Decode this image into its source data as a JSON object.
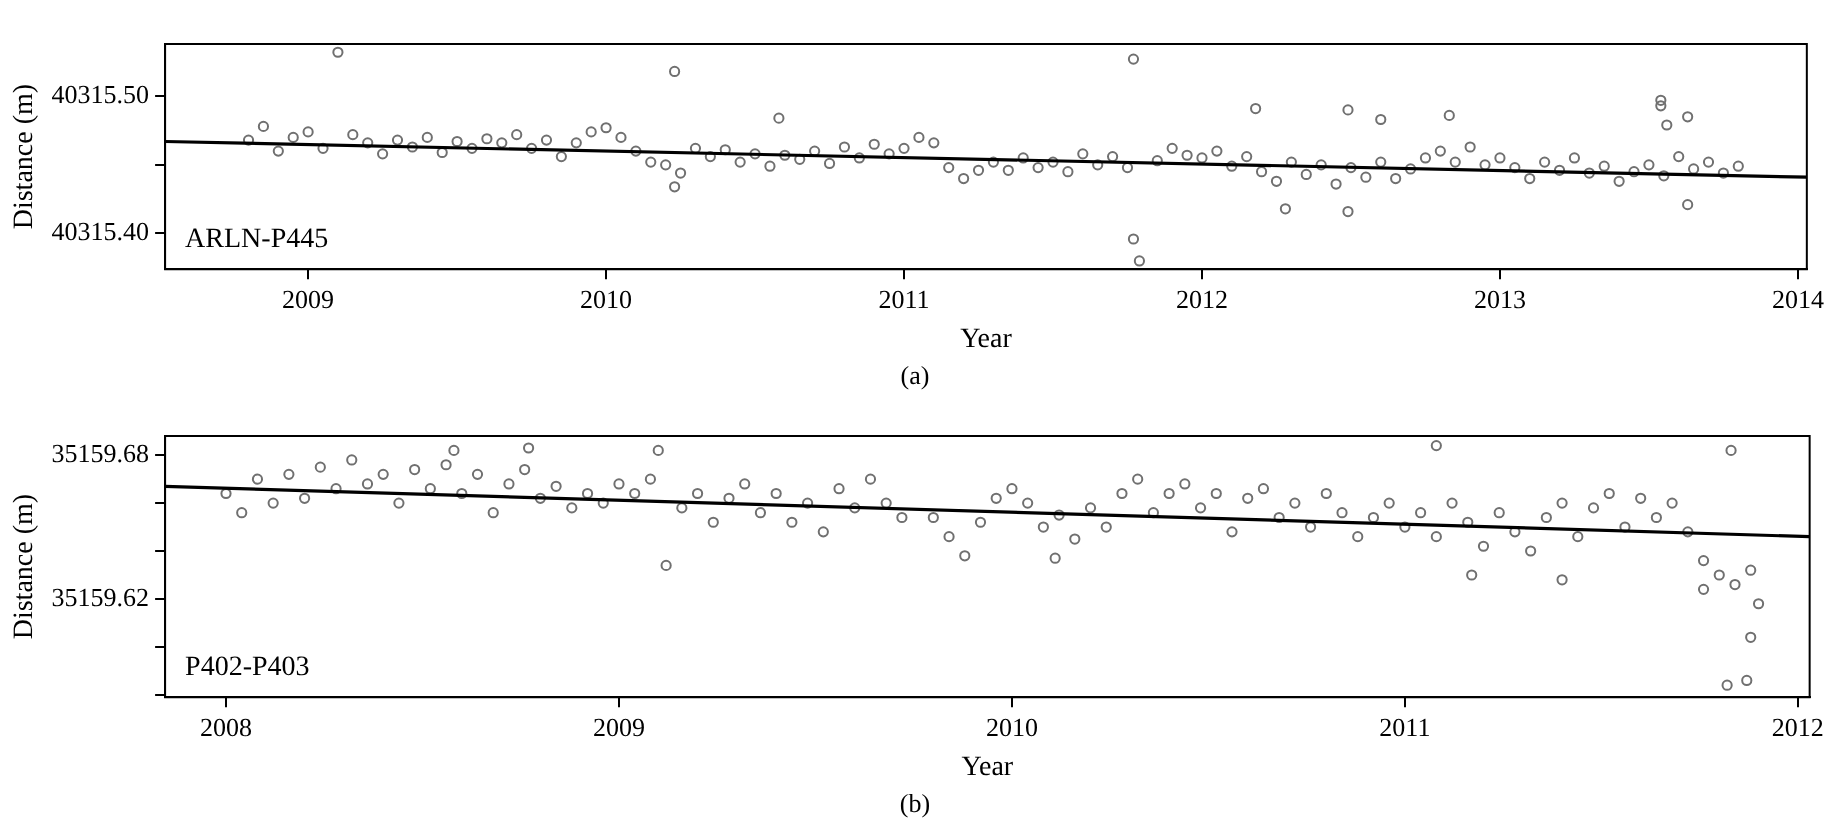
{
  "chart_data": [
    {
      "type": "scatter",
      "xlabel": "Year",
      "ylabel": "Distance (m)",
      "xlim": [
        2008.52,
        2014.03
      ],
      "xticks": [
        2009,
        2010,
        2011,
        2012,
        2013,
        2014
      ],
      "ylim": [
        40315.374,
        40315.538
      ],
      "yticks": [
        {
          "value": 40315.4,
          "label": "40315.40"
        },
        {
          "value": 40315.45,
          "label": null
        },
        {
          "value": 40315.5,
          "label": "40315.50"
        }
      ],
      "annotations": [
        "ARLN-P445",
        "(a)"
      ],
      "series": [
        {
          "color": "#707070",
          "marker": "circle",
          "x": [
            2008.8,
            2008.85,
            2008.9,
            2008.95,
            2009.0,
            2009.05,
            2009.15,
            2009.2,
            2009.25,
            2009.3,
            2009.35,
            2009.4,
            2009.45,
            2009.5,
            2009.55,
            2009.6,
            2009.65,
            2009.7,
            2009.75,
            2009.8,
            2009.85,
            2009.9,
            2009.95,
            2010.0,
            2010.05,
            2010.1,
            2010.15,
            2010.2,
            2010.25,
            2010.3,
            2010.35,
            2010.4,
            2010.45,
            2010.5,
            2010.55,
            2010.6,
            2010.65,
            2010.7,
            2010.75,
            2010.8,
            2010.85,
            2010.9,
            2010.95,
            2011.0,
            2011.05,
            2011.1,
            2011.15,
            2011.2,
            2011.25,
            2011.3,
            2011.35,
            2011.4,
            2011.45,
            2011.5,
            2011.55,
            2011.6,
            2011.65,
            2011.7,
            2011.75,
            2011.85,
            2011.9,
            2011.95,
            2012.0,
            2012.05,
            2012.1,
            2012.15,
            2012.2,
            2012.25,
            2012.3,
            2012.35,
            2012.4,
            2012.45,
            2012.5,
            2012.55,
            2012.6,
            2012.65,
            2012.7,
            2012.75,
            2012.8,
            2012.85,
            2012.9,
            2012.95,
            2013.0,
            2013.05,
            2013.1,
            2013.15,
            2013.2,
            2013.25,
            2013.3,
            2013.35,
            2013.4,
            2013.45,
            2013.5,
            2013.55,
            2013.6,
            2013.65,
            2013.7,
            2013.75,
            2013.8,
            2009.1,
            2010.23,
            2010.23,
            2010.58,
            2011.77,
            2011.77,
            2011.79,
            2012.18,
            2012.28,
            2012.49,
            2012.49,
            2012.6,
            2012.83,
            2013.54,
            2013.54,
            2013.56,
            2013.63,
            2013.63
          ],
          "values": [
            40315.468,
            40315.478,
            40315.46,
            40315.47,
            40315.474,
            40315.462,
            40315.472,
            40315.466,
            40315.458,
            40315.468,
            40315.463,
            40315.47,
            40315.459,
            40315.467,
            40315.462,
            40315.469,
            40315.466,
            40315.472,
            40315.462,
            40315.468,
            40315.456,
            40315.466,
            40315.474,
            40315.477,
            40315.47,
            40315.46,
            40315.452,
            40315.45,
            40315.444,
            40315.462,
            40315.456,
            40315.461,
            40315.452,
            40315.458,
            40315.449,
            40315.457,
            40315.454,
            40315.46,
            40315.451,
            40315.463,
            40315.455,
            40315.465,
            40315.458,
            40315.462,
            40315.47,
            40315.466,
            40315.448,
            40315.44,
            40315.446,
            40315.452,
            40315.446,
            40315.455,
            40315.448,
            40315.452,
            40315.445,
            40315.458,
            40315.45,
            40315.456,
            40315.448,
            40315.453,
            40315.462,
            40315.457,
            40315.455,
            40315.46,
            40315.449,
            40315.456,
            40315.445,
            40315.438,
            40315.452,
            40315.443,
            40315.45,
            40315.436,
            40315.448,
            40315.441,
            40315.452,
            40315.44,
            40315.447,
            40315.455,
            40315.46,
            40315.452,
            40315.463,
            40315.45,
            40315.455,
            40315.448,
            40315.44,
            40315.452,
            40315.446,
            40315.455,
            40315.444,
            40315.449,
            40315.438,
            40315.445,
            40315.45,
            40315.442,
            40315.456,
            40315.447,
            40315.452,
            40315.444,
            40315.449,
            40315.532,
            40315.518,
            40315.434,
            40315.484,
            40315.527,
            40315.396,
            40315.38,
            40315.491,
            40315.418,
            40315.49,
            40315.416,
            40315.483,
            40315.486,
            40315.497,
            40315.493,
            40315.479,
            40315.485,
            40315.421
          ]
        },
        {
          "type": "line",
          "marker": "none",
          "color": "#000000",
          "x": [
            2008.52,
            2014.03
          ],
          "values": [
            40315.467,
            40315.441
          ]
        }
      ]
    },
    {
      "type": "scatter",
      "xlabel": "Year",
      "ylabel": "Distance (m)",
      "xlim": [
        2007.845,
        2012.03
      ],
      "xticks": [
        2008,
        2009,
        2010,
        2011,
        2012
      ],
      "ylim": [
        35159.579,
        35159.688
      ],
      "yticks": [
        {
          "value": 35159.58,
          "label": null
        },
        {
          "value": 35159.6,
          "label": null
        },
        {
          "value": 35159.62,
          "label": "35159.62"
        },
        {
          "value": 35159.64,
          "label": null
        },
        {
          "value": 35159.66,
          "label": null
        },
        {
          "value": 35159.68,
          "label": "35159.68"
        }
      ],
      "annotations": [
        "P402-P403",
        "(b)"
      ],
      "series": [
        {
          "color": "#707070",
          "marker": "circle",
          "x": [
            2008.0,
            2008.04,
            2008.08,
            2008.12,
            2008.16,
            2008.2,
            2008.24,
            2008.28,
            2008.32,
            2008.36,
            2008.4,
            2008.44,
            2008.48,
            2008.52,
            2008.56,
            2008.6,
            2008.64,
            2008.68,
            2008.72,
            2008.76,
            2008.8,
            2008.84,
            2008.88,
            2008.92,
            2008.96,
            2009.0,
            2009.04,
            2009.08,
            2009.16,
            2009.2,
            2009.24,
            2009.28,
            2009.32,
            2009.36,
            2009.4,
            2009.44,
            2009.48,
            2009.52,
            2009.56,
            2009.6,
            2009.64,
            2009.68,
            2009.72,
            2009.8,
            2009.84,
            2009.88,
            2009.92,
            2009.96,
            2010.0,
            2010.04,
            2010.08,
            2010.12,
            2010.16,
            2010.2,
            2010.24,
            2010.28,
            2010.32,
            2010.36,
            2010.4,
            2010.44,
            2010.48,
            2010.52,
            2010.56,
            2010.6,
            2010.64,
            2010.68,
            2010.72,
            2010.76,
            2010.8,
            2010.84,
            2010.88,
            2010.92,
            2010.96,
            2011.0,
            2011.04,
            2011.08,
            2011.12,
            2011.16,
            2011.2,
            2011.24,
            2011.28,
            2011.32,
            2011.36,
            2011.4,
            2011.44,
            2011.48,
            2011.52,
            2011.56,
            2011.6,
            2011.64,
            2011.68,
            2011.72,
            2011.76,
            2011.8,
            2011.84,
            2011.88,
            2011.9,
            2008.77,
            2008.58,
            2009.12,
            2009.1,
            2010.11,
            2011.08,
            2011.17,
            2011.4,
            2011.83,
            2011.82,
            2011.87,
            2011.88,
            2011.76
          ],
          "values": [
            35159.664,
            35159.656,
            35159.67,
            35159.66,
            35159.672,
            35159.662,
            35159.675,
            35159.666,
            35159.678,
            35159.668,
            35159.672,
            35159.66,
            35159.674,
            35159.666,
            35159.676,
            35159.664,
            35159.672,
            35159.656,
            35159.668,
            35159.674,
            35159.662,
            35159.667,
            35159.658,
            35159.664,
            35159.66,
            35159.668,
            35159.664,
            35159.67,
            35159.658,
            35159.664,
            35159.652,
            35159.662,
            35159.668,
            35159.656,
            35159.664,
            35159.652,
            35159.66,
            35159.648,
            35159.666,
            35159.658,
            35159.67,
            35159.66,
            35159.654,
            35159.654,
            35159.646,
            35159.638,
            35159.652,
            35159.662,
            35159.666,
            35159.66,
            35159.65,
            35159.655,
            35159.645,
            35159.658,
            35159.65,
            35159.664,
            35159.67,
            35159.656,
            35159.664,
            35159.668,
            35159.658,
            35159.664,
            35159.648,
            35159.662,
            35159.666,
            35159.654,
            35159.66,
            35159.65,
            35159.664,
            35159.656,
            35159.646,
            35159.654,
            35159.66,
            35159.65,
            35159.656,
            35159.646,
            35159.66,
            35159.652,
            35159.642,
            35159.656,
            35159.648,
            35159.64,
            35159.654,
            35159.66,
            35159.646,
            35159.658,
            35159.664,
            35159.65,
            35159.662,
            35159.654,
            35159.66,
            35159.648,
            35159.636,
            35159.63,
            35159.626,
            35159.632,
            35159.618,
            35159.683,
            35159.682,
            35159.634,
            35159.682,
            35159.637,
            35159.684,
            35159.63,
            35159.628,
            35159.682,
            35159.584,
            35159.586,
            35159.604,
            35159.624
          ]
        },
        {
          "type": "line",
          "marker": "none",
          "color": "#000000",
          "x": [
            2007.845,
            2012.03
          ],
          "values": [
            35159.667,
            35159.646
          ]
        }
      ]
    }
  ]
}
